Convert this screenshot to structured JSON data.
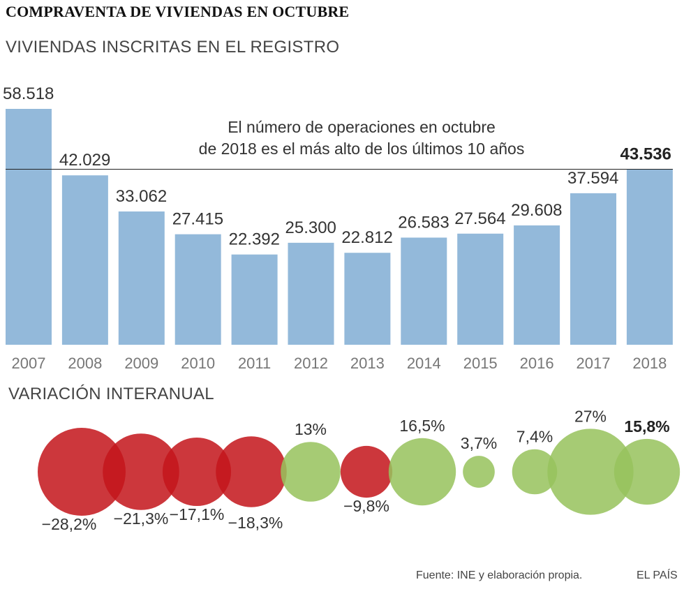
{
  "title": "COMPRAVENTA DE VIVIENDAS EN OCTUBRE",
  "colors": {
    "bar": "#93b9da",
    "negative": "#c4161c",
    "positive": "#97c35d",
    "text": "#333333"
  },
  "chart_data": [
    {
      "type": "bar",
      "title": "VIVIENDAS INSCRITAS EN EL REGISTRO",
      "categories": [
        "2007",
        "2008",
        "2009",
        "2010",
        "2011",
        "2012",
        "2013",
        "2014",
        "2015",
        "2016",
        "2017",
        "2018"
      ],
      "values": [
        58518,
        42029,
        33062,
        27415,
        22392,
        25300,
        22812,
        26583,
        27564,
        29608,
        37594,
        43536
      ],
      "labels": [
        "58.518",
        "42.029",
        "33.062",
        "27.415",
        "22.392",
        "25.300",
        "22.812",
        "26.583",
        "27.564",
        "29.608",
        "37.594",
        "43.536"
      ],
      "ylim": [
        0,
        58518
      ],
      "annotation": {
        "line1": "El número de operaciones en octubre",
        "line2": "de 2018 es el más alto de los últimos 10 años",
        "reference_value": 43536
      }
    },
    {
      "type": "bubble",
      "title": "VARIACIÓN INTERANUAL",
      "categories": [
        "2008",
        "2009",
        "2010",
        "2011",
        "2012",
        "2013",
        "2014",
        "2015",
        "2016",
        "2017",
        "2018"
      ],
      "values": [
        -28.2,
        -21.3,
        -17.1,
        -18.3,
        13,
        -9.8,
        16.5,
        3.7,
        7.4,
        27,
        15.8
      ],
      "labels": [
        "−28,2%",
        "−21,3%",
        "−17,1%",
        "−18,3%",
        "13%",
        "−9,8%",
        "16,5%",
        "3,7%",
        "7,4%",
        "27%",
        "15,8%"
      ]
    }
  ],
  "footer": {
    "source": "Fuente: INE y elaboración propia.",
    "brand": "EL PAÍS"
  }
}
